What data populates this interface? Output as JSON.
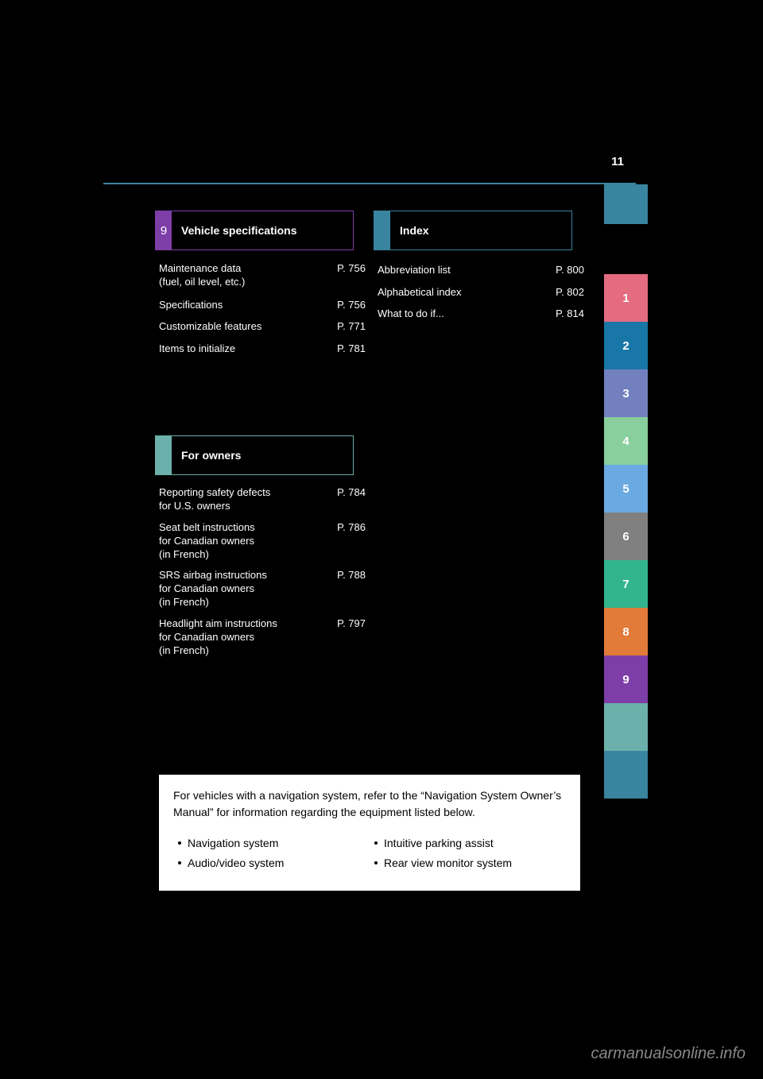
{
  "page_number": "11",
  "top_box_color": "#39849e",
  "divider_color": "#39849e",
  "sections": {
    "left": {
      "num": "9",
      "num_color": "#7e3ea8",
      "border_color": "#7e3ea8",
      "label": "Vehicle specifications",
      "entries": [
        {
          "desc": "Maintenance data<br>(fuel, oil level, etc.)",
          "page": "P. 756",
          "multi": true
        },
        {
          "desc": "Specifications",
          "page": "P. 756"
        },
        {
          "desc": "Customizable features",
          "page": "P. 771"
        },
        {
          "desc": "Items to initialize",
          "page": "P. 781"
        }
      ]
    },
    "mid": {
      "num": "",
      "num_color": "#6bb0aa",
      "border_color": "#6bb0aa",
      "label": "For owners",
      "entries": [
        {
          "desc": "Reporting safety defects<br>for U.S. owners",
          "page": "P. 784",
          "multi": true
        },
        {
          "desc": "Seat belt instructions<br>for Canadian owners<br>(in French)",
          "page": "P. 786",
          "multi": true
        },
        {
          "desc": "SRS airbag instructions<br>for Canadian owners<br>(in French)",
          "page": "P. 788",
          "multi": true
        },
        {
          "desc": "Headlight aim instructions<br>for Canadian owners<br>(in French)",
          "page": "P. 797",
          "multi": true
        }
      ]
    },
    "right": {
      "num": "",
      "num_color": "#39849e",
      "border_color": "#39849e",
      "label": "Index",
      "entries": [
        {
          "desc": "Abbreviation list",
          "page": "P. 800"
        },
        {
          "desc": "Alphabetical index",
          "page": "P. 802"
        },
        {
          "desc": "What to do if...",
          "page": "P. 814"
        }
      ]
    }
  },
  "tabs": [
    {
      "num": "1",
      "color": "#e46b80"
    },
    {
      "num": "2",
      "color": "#1877a6"
    },
    {
      "num": "3",
      "color": "#7280bf"
    },
    {
      "num": "4",
      "color": "#89ce9d"
    },
    {
      "num": "5",
      "color": "#6aa9e2"
    },
    {
      "num": "6",
      "color": "#808080"
    },
    {
      "num": "7",
      "color": "#32b48c"
    },
    {
      "num": "8",
      "color": "#e27a3a"
    },
    {
      "num": "9",
      "color": "#7e3ea8"
    },
    {
      "num": "",
      "color": "#6bb0aa"
    },
    {
      "num": "",
      "color": "#39849e"
    }
  ],
  "info_box": {
    "header": "For vehicles with a navigation system, refer to the “Navigation System Owner’s Manual” for information regarding the equipment listed below.",
    "left_items": [
      "Navigation system",
      "Audio/video system"
    ],
    "right_items": [
      "Intuitive parking assist",
      "Rear view monitor system"
    ]
  },
  "watermark": "carmanualsonline.info"
}
